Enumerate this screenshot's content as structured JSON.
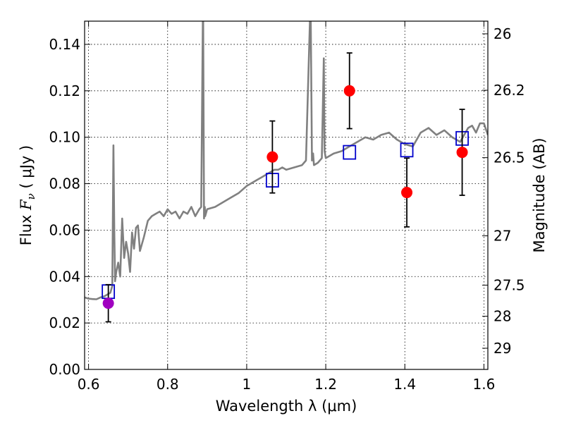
{
  "chart_data": {
    "type": "scatter",
    "title": "",
    "xlabel": "Wavelength  λ (μm)",
    "ylabel": "Flux  F_ν  ( μJy )",
    "ylabel_parts": {
      "pre": "Flux  ",
      "sym": "F",
      "sub": "ν",
      "post": "  ( μJy )"
    },
    "y2label": "Magnitude (AB)",
    "xlim": [
      0.59,
      1.61
    ],
    "ylim": [
      0.0,
      0.15
    ],
    "grid": true,
    "x_ticks": [
      0.6,
      0.8,
      1.0,
      1.2,
      1.4,
      1.6
    ],
    "x_tick_labels": [
      "0.6",
      "0.8",
      "1",
      "1.2",
      "1.4",
      "1.6"
    ],
    "y_ticks": [
      0.0,
      0.02,
      0.04,
      0.06,
      0.08,
      0.1,
      0.12,
      0.14
    ],
    "y_tick_labels": [
      "0.00",
      "0.02",
      "0.04",
      "0.06",
      "0.08",
      "0.10",
      "0.12",
      "0.14"
    ],
    "y2_tick_labels": [
      "26",
      "26.2",
      "26.5",
      "27",
      "27.5",
      "28",
      "29"
    ],
    "colors": {
      "spectrum": "#808080",
      "observed": "#ff0000",
      "observed_first": "#a000c0",
      "model_box": "#0000cc",
      "errorbar": "#000000"
    },
    "series": [
      {
        "kind": "spectrum",
        "x": [
          0.59,
          0.6,
          0.61,
          0.62,
          0.63,
          0.64,
          0.645,
          0.65,
          0.655,
          0.66,
          0.663,
          0.665,
          0.667,
          0.67,
          0.675,
          0.68,
          0.685,
          0.69,
          0.695,
          0.7,
          0.705,
          0.71,
          0.715,
          0.72,
          0.725,
          0.73,
          0.74,
          0.75,
          0.76,
          0.77,
          0.78,
          0.79,
          0.8,
          0.81,
          0.82,
          0.83,
          0.84,
          0.85,
          0.86,
          0.87,
          0.88,
          0.885,
          0.889,
          0.89,
          0.892,
          0.894,
          0.895,
          0.9,
          0.92,
          0.94,
          0.96,
          0.98,
          1.0,
          1.02,
          1.04,
          1.05,
          1.06,
          1.07,
          1.08,
          1.09,
          1.1,
          1.12,
          1.14,
          1.15,
          1.16,
          1.162,
          1.165,
          1.168,
          1.17,
          1.18,
          1.19,
          1.195,
          1.197,
          1.2,
          1.22,
          1.24,
          1.26,
          1.28,
          1.3,
          1.32,
          1.34,
          1.36,
          1.38,
          1.4,
          1.42,
          1.44,
          1.46,
          1.48,
          1.5,
          1.52,
          1.54,
          1.56,
          1.57,
          1.58,
          1.59,
          1.6,
          1.61
        ],
        "y": [
          0.031,
          0.0305,
          0.0303,
          0.0302,
          0.031,
          0.0315,
          0.032,
          0.0325,
          0.033,
          0.036,
          0.0965,
          0.06,
          0.038,
          0.042,
          0.046,
          0.04,
          0.065,
          0.048,
          0.055,
          0.05,
          0.042,
          0.059,
          0.052,
          0.061,
          0.062,
          0.051,
          0.057,
          0.064,
          0.066,
          0.067,
          0.068,
          0.066,
          0.069,
          0.067,
          0.068,
          0.065,
          0.068,
          0.067,
          0.07,
          0.066,
          0.069,
          0.07,
          0.15,
          0.15,
          0.065,
          0.07,
          0.066,
          0.069,
          0.07,
          0.072,
          0.074,
          0.076,
          0.079,
          0.081,
          0.083,
          0.084,
          0.085,
          0.086,
          0.086,
          0.087,
          0.086,
          0.087,
          0.088,
          0.09,
          0.15,
          0.15,
          0.09,
          0.093,
          0.088,
          0.089,
          0.091,
          0.134,
          0.094,
          0.091,
          0.093,
          0.094,
          0.096,
          0.098,
          0.1,
          0.099,
          0.101,
          0.102,
          0.099,
          0.097,
          0.096,
          0.102,
          0.104,
          0.101,
          0.103,
          0.1,
          0.098,
          0.104,
          0.105,
          0.102,
          0.106,
          0.106,
          0.101
        ]
      },
      {
        "kind": "observed",
        "x": [
          0.65,
          1.065,
          1.26,
          1.405,
          1.545
        ],
        "y": [
          0.0285,
          0.0915,
          0.12,
          0.0762,
          0.0935
        ],
        "err": [
          0.008,
          0.0155,
          0.0163,
          0.0148,
          0.0185
        ]
      },
      {
        "kind": "model",
        "x": [
          0.65,
          1.065,
          1.26,
          1.405,
          1.545
        ],
        "y": [
          0.0335,
          0.0815,
          0.0935,
          0.0945,
          0.0995
        ]
      }
    ]
  }
}
